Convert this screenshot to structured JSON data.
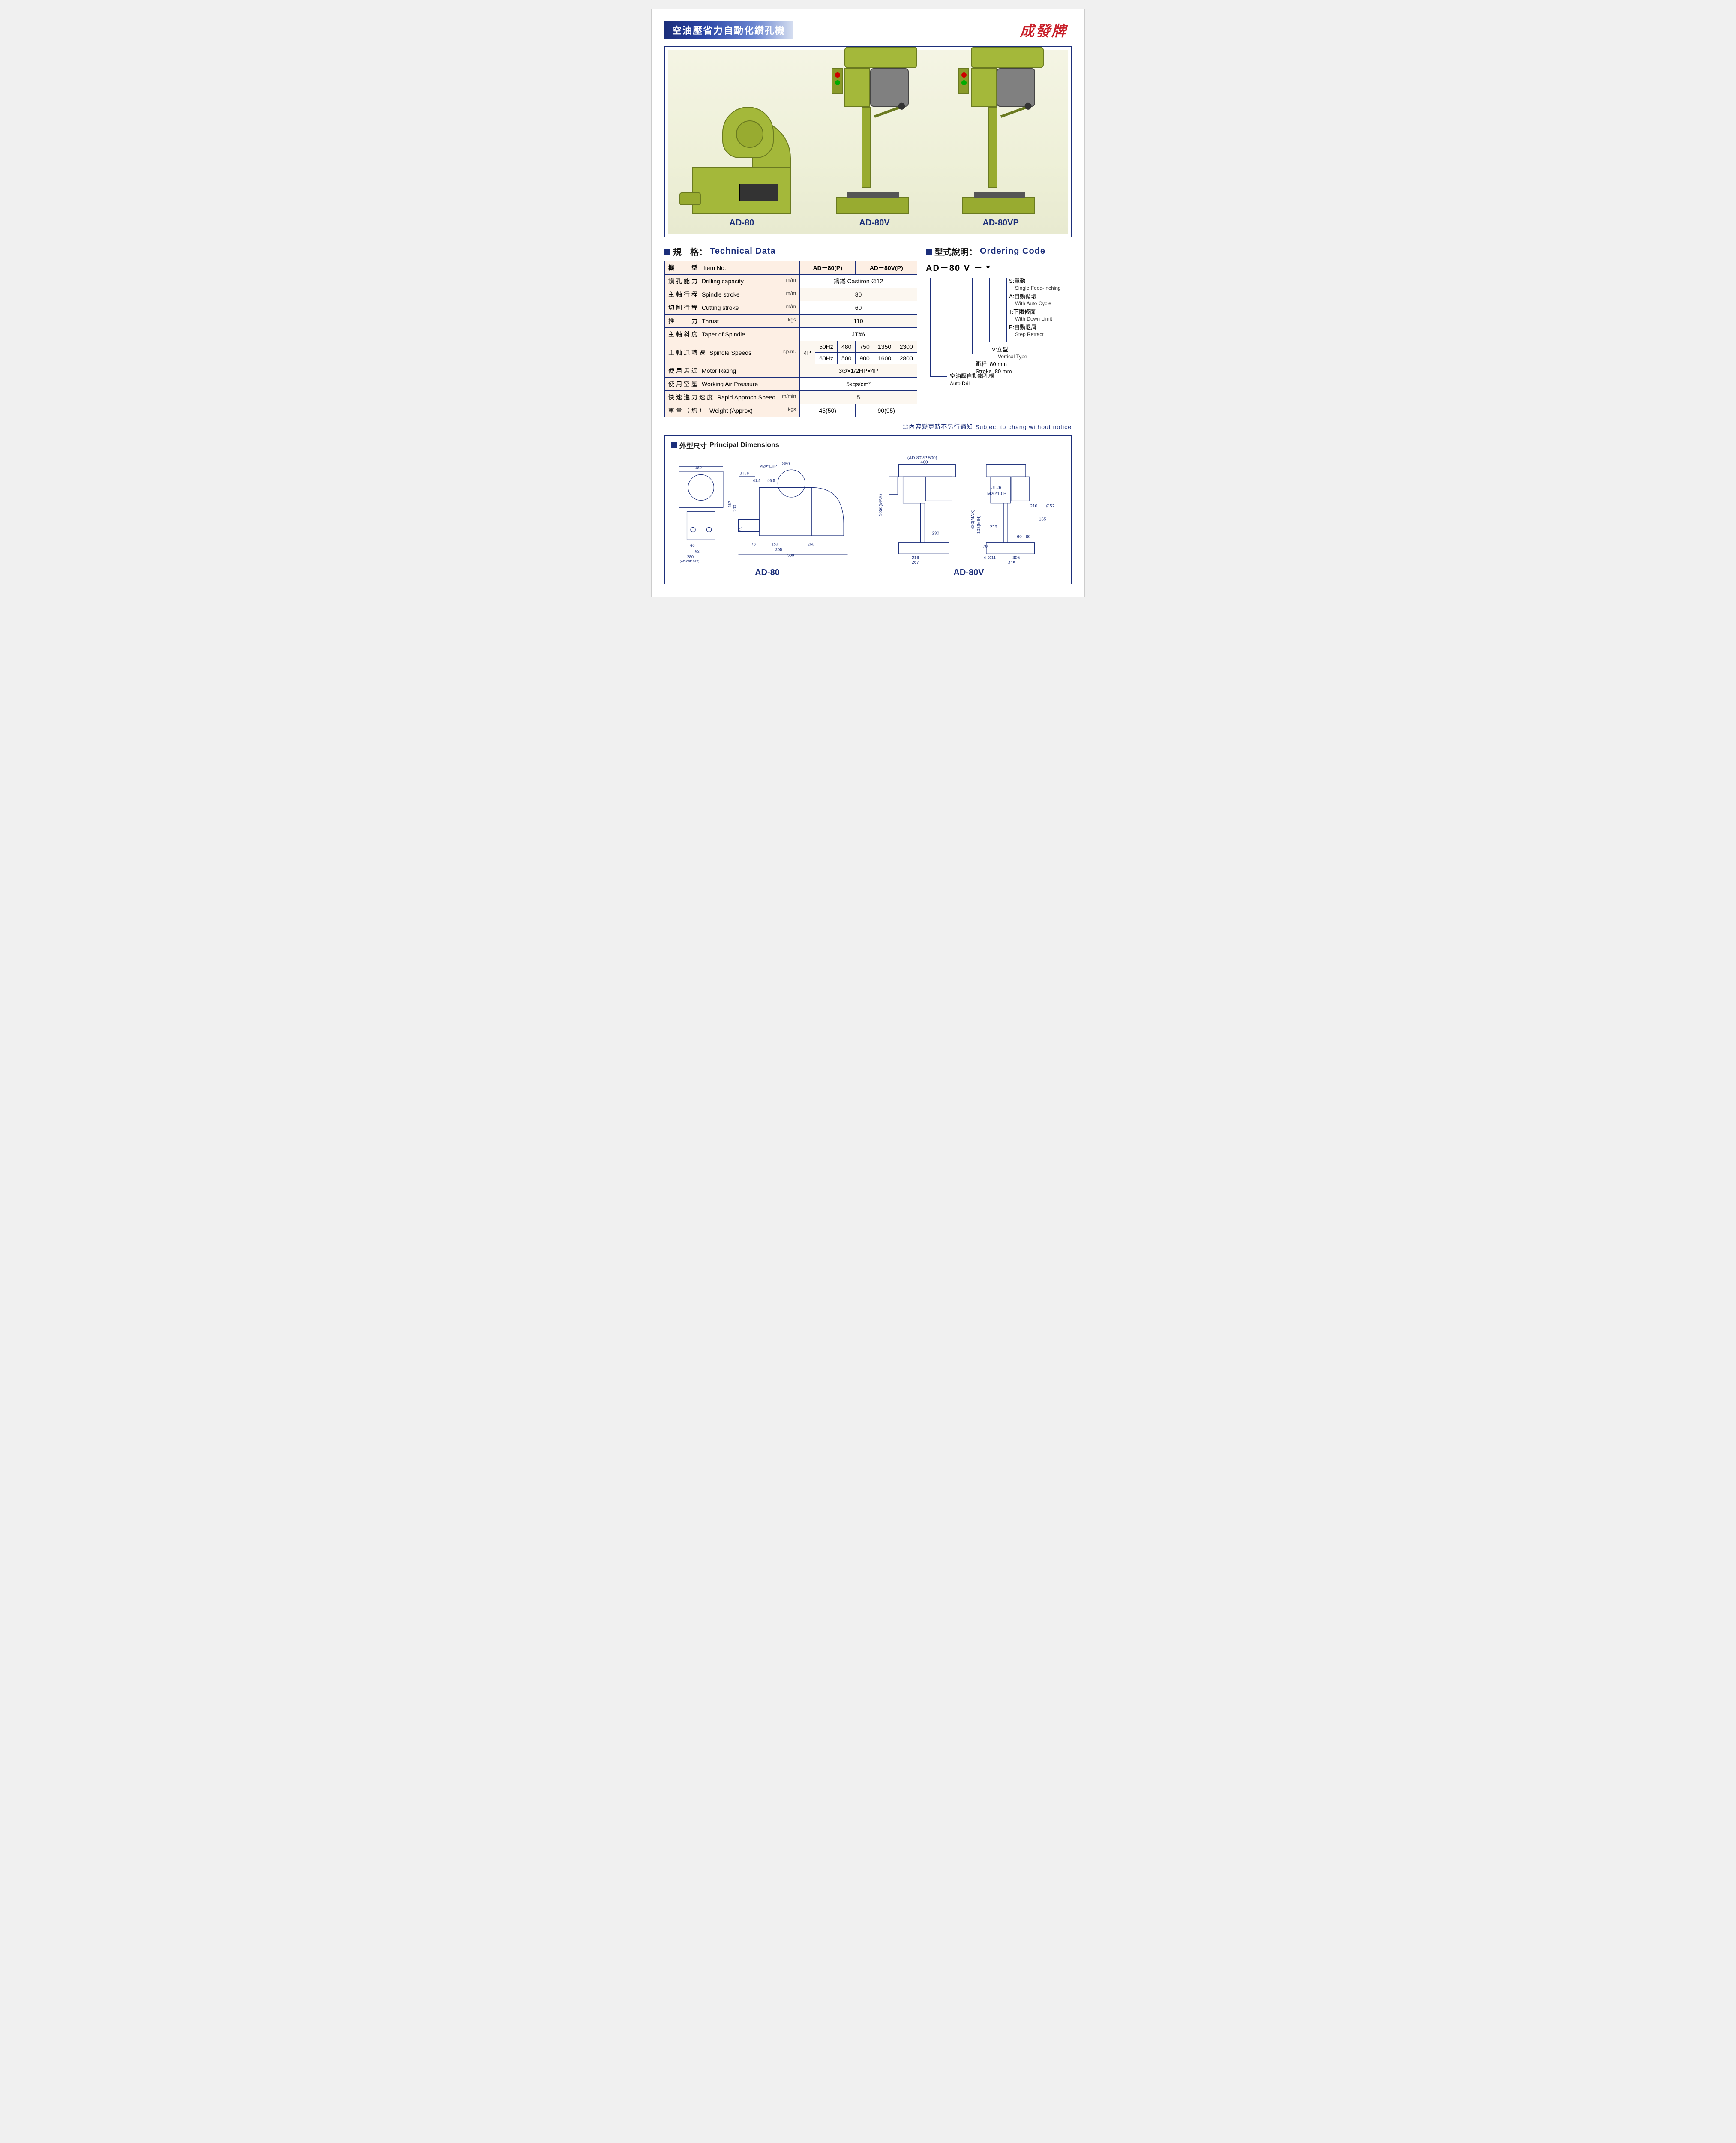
{
  "header": {
    "title_cn": "空油壓省力自動化鑽孔機",
    "brand": "成發牌"
  },
  "products": {
    "items": [
      {
        "model": "AD-80"
      },
      {
        "model": "AD-80V"
      },
      {
        "model": "AD-80VP"
      }
    ]
  },
  "technical": {
    "title_cn": "規　格：",
    "title_en": "Technical Data",
    "header": {
      "item_cn": "機　　型",
      "item_en": "Item No.",
      "col1": "AD－80(P)",
      "col2": "AD－80V(P)"
    },
    "rows": [
      {
        "cn": "鑽孔能力",
        "en": "Drilling capacity",
        "unit": "m/m",
        "val": "鑄鐵  Castiron  ∅12",
        "span": 2
      },
      {
        "cn": "主軸行程",
        "en": "Spindle stroke",
        "unit": "m/m",
        "val": "80",
        "span": 2
      },
      {
        "cn": "切削行程",
        "en": "Cutting stroke",
        "unit": "m/m",
        "val": "60",
        "span": 2
      },
      {
        "cn": "推　　力",
        "en": "Thrust",
        "unit": "kgs",
        "val": "110",
        "span": 2
      },
      {
        "cn": "主軸斜度",
        "en": "Taper of Spindle",
        "unit": "",
        "val": "JT#6",
        "span": 2
      }
    ],
    "speed": {
      "cn": "主軸迴轉速",
      "en": "Spindle Speeds",
      "unit": "r.p.m.",
      "pole": "4P",
      "r50_label": "50Hz",
      "r50": [
        "480",
        "750",
        "1350",
        "2300"
      ],
      "r60_label": "60Hz",
      "r60": [
        "500",
        "900",
        "1600",
        "2800"
      ]
    },
    "rows2": [
      {
        "cn": "使用馬達",
        "en": "Motor Rating",
        "unit": "",
        "val": "3∅×1/2HP×4P",
        "span": 2
      },
      {
        "cn": "使用空壓",
        "en": "Working Air Pressure",
        "unit": "",
        "val": "5kgs/cm²",
        "span": 2
      },
      {
        "cn": "快速進刀速度",
        "en": "Rapid Approch Speed",
        "unit": "m/min",
        "val": "5",
        "span": 2
      }
    ],
    "weight": {
      "cn": "重量（約）",
      "en": "Weight (Approx)",
      "unit": "kgs",
      "v1": "45(50)",
      "v2": "90(95)"
    }
  },
  "ordering": {
    "title_cn": "型式說明：",
    "title_en": "Ordering Code",
    "code": "AD－80  V  － *",
    "star": {
      "s_cn": "S:單動",
      "s_en": "Single Feed-Inching",
      "a_cn": "A:自動循環",
      "a_en": "With Auto Cycle",
      "t_cn": "T:下限修面",
      "t_en": "With Down Limit",
      "p_cn": "P:自動退屑",
      "p_en": "Step Retract"
    },
    "v": {
      "cn": "V:立型",
      "en": "Vertical Type"
    },
    "stroke": {
      "label_cn": "衝程",
      "label_stroke": "Stroke",
      "val": "80 mm",
      "val2": "80 mm"
    },
    "base": {
      "cn": "空油壓自動鑽孔機",
      "en": "Auto Drill"
    }
  },
  "notice": {
    "text": "◎內容變更時不另行通知 Subject to chang without notice"
  },
  "dimensions": {
    "title_cn": "外型尺寸",
    "title_en": "Principal Dimensions",
    "ad80": {
      "label": "AD-80",
      "d": {
        "w180a": "180",
        "jt6": "JT#6",
        "m20": "M20*1.0P",
        "d50": "∅50",
        "v41_5": "41.5",
        "v46_5": "46.5",
        "v387": "387",
        "v200": "200",
        "v85": "85",
        "w60": "60",
        "w92": "92",
        "w280": "280",
        "w280p": "(AD-80P:320)",
        "w73": "73",
        "w180b": "180",
        "w205": "205",
        "w260": "260",
        "w538": "538"
      }
    },
    "ad80v": {
      "label": "AD-80V",
      "d": {
        "top": "(AD-80VP:500)",
        "w460": "460",
        "h1050": "1050(MAX)",
        "jt6": "JT#6",
        "m20": "M20*1.0P",
        "h430": "430(MAX)",
        "h103": "103(MIN)",
        "v210": "210",
        "v165": "165",
        "v236": "236",
        "d52": "∅52",
        "v60": "60",
        "v60b": "60",
        "v70": "70",
        "w216": "216",
        "w230": "230",
        "w267": "267",
        "w300": "300",
        "d11": "4-∅11",
        "w305": "305",
        "w415": "415"
      }
    }
  }
}
